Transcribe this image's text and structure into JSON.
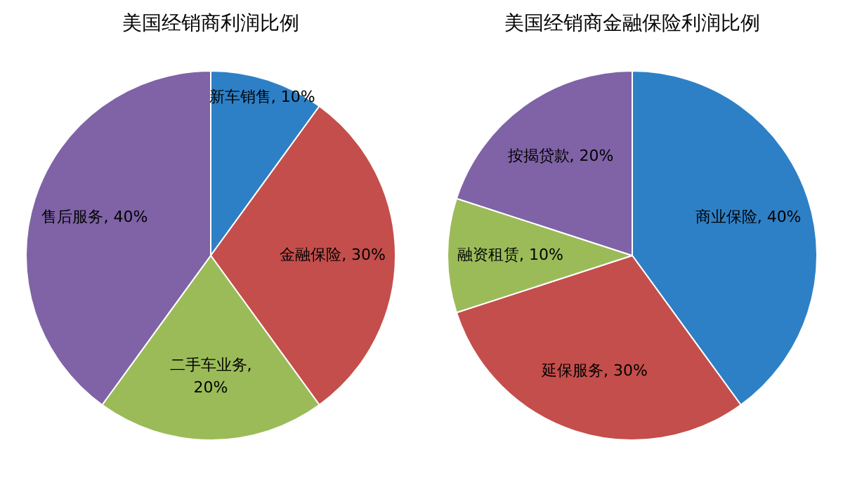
{
  "chart_data": [
    {
      "type": "pie",
      "title": "美国经销商利润比例",
      "categories": [
        "新车销售",
        "金融保险",
        "二手车业务",
        "售后服务"
      ],
      "values": [
        10,
        30,
        20,
        40
      ],
      "colors": [
        "#2e80c6",
        "#c44e4b",
        "#9bbb59",
        "#7f63a6"
      ],
      "value_labels": [
        ", 10%",
        ", 30%",
        ", 20%",
        ", 40%"
      ]
    },
    {
      "type": "pie",
      "title": "美国经销商金融保险利润比例",
      "categories": [
        "商业保险",
        "延保服务",
        "融资租赁",
        "按揭贷款"
      ],
      "values": [
        40,
        30,
        10,
        20
      ],
      "colors": [
        "#2e80c6",
        "#c44e4b",
        "#9bbb59",
        "#7f63a6"
      ],
      "value_labels": [
        ", 40%",
        ", 30%",
        ", 10%",
        ", 20%"
      ]
    }
  ]
}
